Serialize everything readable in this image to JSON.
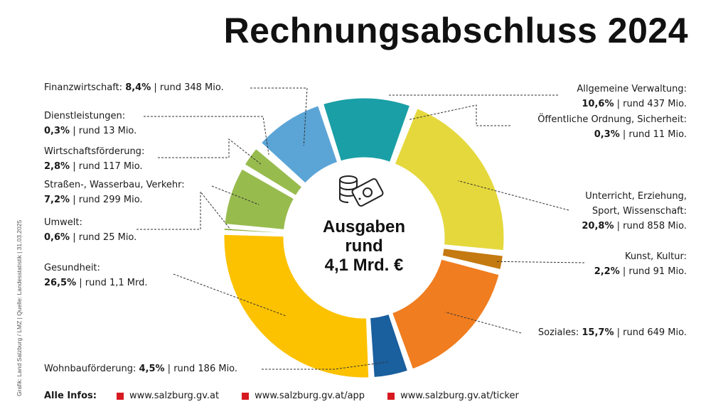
{
  "title": "Rechnungsabschluss 2024",
  "side_credit": "Grafik: Land Salzburg / LMZ | Quelle: Landesstatistik | 31.03.2025",
  "center": {
    "line1": "Ausgaben",
    "line2": "rund",
    "line3": "4,1 Mrd. €"
  },
  "footer": {
    "heading": "Alle Infos:",
    "links": [
      "www.salzburg.gv.at",
      "www.salzburg.gv.at/app",
      "www.salzburg.gv.at/ticker"
    ],
    "square_color": "#d71920"
  },
  "chart_data": {
    "type": "pie",
    "variant": "donut",
    "center_label": "Ausgaben rund 4,1 Mrd. €",
    "segments": [
      {
        "name": "Allgemeine Verwaltung",
        "percent_text": "10,6%",
        "amount": "rund 437 Mio.",
        "value": 10.6,
        "color": "#1a9fa6"
      },
      {
        "name": "Öffentliche Ordnung, Sicherheit",
        "percent_text": "0,3%",
        "amount": "rund 11 Mio.",
        "value": 0.3,
        "color": "#e5d83c"
      },
      {
        "name": "Unterricht, Erziehung, Sport, Wissenschaft",
        "percent_text": "20,8%",
        "amount": "rund 858 Mio.",
        "value": 20.8,
        "color": "#e5d83c"
      },
      {
        "name": "Kunst, Kultur",
        "percent_text": "2,2%",
        "amount": "rund 91 Mio.",
        "value": 2.2,
        "color": "#c47a10"
      },
      {
        "name": "Soziales",
        "percent_text": "15,7%",
        "amount": "rund 649 Mio.",
        "value": 15.7,
        "color": "#f07d1f"
      },
      {
        "name": "Wohnbauförderung",
        "percent_text": "4,5%",
        "amount": "rund 186 Mio.",
        "value": 4.5,
        "color": "#1a5f9e"
      },
      {
        "name": "Gesundheit",
        "percent_text": "26,5%",
        "amount": "rund 1,1 Mrd.",
        "value": 26.5,
        "color": "#fcc200"
      },
      {
        "name": "Umwelt",
        "percent_text": "0,6%",
        "amount": "rund 25 Mio.",
        "value": 0.6,
        "color": "#8aae3c"
      },
      {
        "name": "Straßen-, Wasserbau, Verkehr",
        "percent_text": "7,2%",
        "amount": "rund 299 Mio.",
        "value": 7.2,
        "color": "#98bb4e"
      },
      {
        "name": "Wirtschaftsförderung",
        "percent_text": "2,8%",
        "amount": "rund 117 Mio.",
        "value": 2.8,
        "color": "#98bb4e"
      },
      {
        "name": "Dienstleistungen",
        "percent_text": "0,3%",
        "amount": "rund 13 Mio.",
        "value": 0.3,
        "color": "#6f9a1e"
      },
      {
        "name": "Finanzwirtschaft",
        "percent_text": "8,4%",
        "amount": "rund 348 Mio.",
        "value": 8.4,
        "color": "#5ba4d6"
      }
    ]
  }
}
